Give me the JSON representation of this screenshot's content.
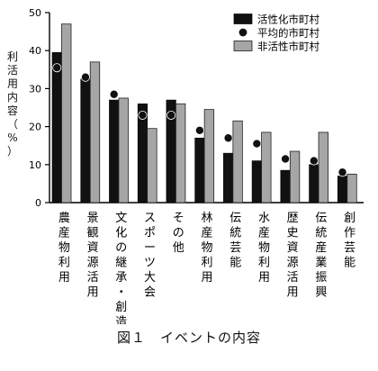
{
  "chart_data": {
    "type": "bar",
    "title": "",
    "ylabel": "利活用内容（%）",
    "xlabel": "",
    "ylim": [
      0,
      50
    ],
    "yticks": [
      0,
      10,
      20,
      30,
      40,
      50
    ],
    "grid": false,
    "legend_position": "top-right",
    "categories": [
      "農産物利用",
      "景観資源活用",
      "文化の継承・創造",
      "スポーツ大会",
      "その他",
      "林産物利用",
      "伝統芸能",
      "水産物利用",
      "歴史資源活用",
      "伝統産業振興",
      "創作芸能"
    ],
    "series": [
      {
        "name": "活性化市町村",
        "kind": "bar",
        "color": "#111111",
        "values": [
          39.5,
          32.5,
          27,
          26,
          27,
          17,
          13,
          11,
          8.5,
          10,
          7
        ]
      },
      {
        "name": "平均的市町村",
        "kind": "marker",
        "color": "#111111",
        "values": [
          35.5,
          33,
          28.5,
          23,
          23,
          19,
          17,
          15.5,
          11.5,
          11,
          8
        ]
      },
      {
        "name": "非活性市町村",
        "kind": "bar",
        "color": "#a6a6a6",
        "values": [
          47,
          37,
          27.5,
          19.5,
          26,
          24.5,
          21.5,
          18.5,
          13.5,
          18.5,
          7.5
        ]
      }
    ]
  },
  "caption": "図１　イベントの内容",
  "colors": {
    "dark_bar": "#111111",
    "light_bar": "#a6a6a6",
    "axis": "#000000"
  }
}
